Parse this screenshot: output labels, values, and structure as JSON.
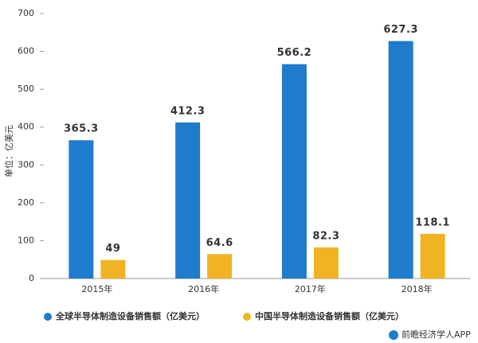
{
  "chart_data": {
    "type": "bar",
    "y_label": "单位：亿美元",
    "categories": [
      "2015年",
      "2016年",
      "2017年",
      "2018年"
    ],
    "series": [
      {
        "name": "全球半导体制造设备销售额（亿美元）",
        "color": "#1f7bcc",
        "values": [
          365.3,
          412.3,
          566.2,
          627.3
        ]
      },
      {
        "name": "中国半导体制造设备销售额（亿美元）",
        "color": "#f0b323",
        "values": [
          49,
          64.6,
          82.3,
          118.1
        ]
      }
    ],
    "ylim": [
      0,
      700
    ],
    "yticks": [
      0,
      100,
      200,
      300,
      400,
      500,
      600,
      700
    ],
    "grid": false,
    "legend": "bottom",
    "source": "前瞻经济学人APP"
  }
}
